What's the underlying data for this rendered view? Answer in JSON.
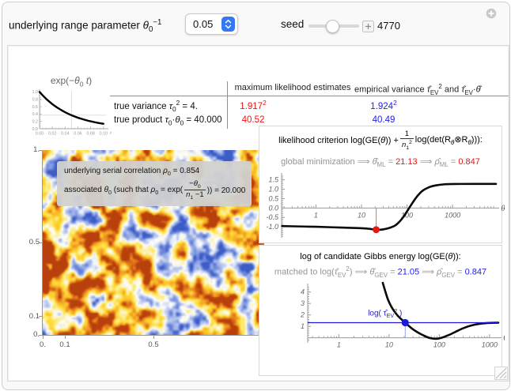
{
  "controls": {
    "range_label_segs": [
      {
        "t": "underlying range parameter "
      },
      {
        "t": "θ",
        "i": 1
      },
      {
        "t": "0",
        "sub": 1
      },
      {
        "t": "−1",
        "sup": 1
      }
    ],
    "range_value": "0.05",
    "seed_label": "seed",
    "seed_value": "4770"
  },
  "table": {
    "header_ml": "maximum likelihood estimates",
    "header_ev_segs": [
      {
        "t": "empirical variance "
      },
      {
        "t": "τ̂",
        "i": 1
      },
      {
        "t": "EV",
        "sub": 1
      },
      {
        "t": "2",
        "sup": 1
      },
      {
        "t": " and "
      },
      {
        "t": "τ̂",
        "i": 1
      },
      {
        "t": "EV",
        "sub": 1
      },
      {
        "t": "·"
      },
      {
        "t": "θ̂",
        "i": 1
      }
    ],
    "rows": [
      {
        "label_segs": [
          {
            "t": "true variance "
          },
          {
            "t": "τ",
            "i": 1
          },
          {
            "t": "0",
            "sub": 1
          },
          {
            "t": "2",
            "sup": 1
          },
          {
            "t": " = 4."
          }
        ],
        "ml_segs": [
          {
            "t": "1.917"
          },
          {
            "t": "2",
            "sup": 1
          }
        ],
        "ev_segs": [
          {
            "t": "1.924"
          },
          {
            "t": "2",
            "sup": 1
          }
        ]
      },
      {
        "label_segs": [
          {
            "t": "true product "
          },
          {
            "t": "τ",
            "i": 1
          },
          {
            "t": "0",
            "sub": 1
          },
          {
            "t": "·"
          },
          {
            "t": "θ",
            "i": 1
          },
          {
            "t": "0",
            "sub": 1
          },
          {
            "t": " = 40.000"
          }
        ],
        "ml_segs": [
          {
            "t": "40.52"
          }
        ],
        "ev_segs": [
          {
            "t": "40.49"
          }
        ]
      }
    ],
    "ml_color": "#ee1111",
    "ev_color": "#1d1dee"
  },
  "field_plot": {
    "x_ticks": [
      [
        0,
        "0."
      ],
      [
        0.1,
        "0.1"
      ],
      [
        0.5,
        "0.5"
      ],
      [
        1,
        "1."
      ]
    ],
    "y_ticks": [
      [
        0,
        "0."
      ],
      [
        0.1,
        "0.1"
      ],
      [
        0.5,
        "0.5"
      ],
      [
        1,
        "1."
      ]
    ],
    "overlay_line1_segs": [
      {
        "t": "underlying serial correlation "
      },
      {
        "t": "ρ",
        "i": 1
      },
      {
        "t": "0",
        "sub": 1
      },
      {
        "t": " = 0.854"
      }
    ],
    "overlay_line2_prefix_segs": [
      {
        "t": "associated "
      },
      {
        "t": "θ",
        "i": 1
      },
      {
        "t": "0",
        "sub": 1
      },
      {
        "t": " (such that "
      },
      {
        "t": "ρ",
        "i": 1
      },
      {
        "t": "0",
        "sub": 1
      },
      {
        "t": " = exp("
      }
    ],
    "overlay_frac_top_segs": [
      {
        "t": "−"
      },
      {
        "t": "θ",
        "i": 1
      },
      {
        "t": "0",
        "sub": 1
      }
    ],
    "overlay_frac_bottom_segs": [
      {
        "t": "n",
        "i": 1
      },
      {
        "t": "1",
        "sub": 1
      },
      {
        "t": " −1"
      }
    ],
    "overlay_line2_suffix_segs": [
      {
        "t": ")) = 20.000"
      }
    ],
    "colormap": [
      [
        0,
        "#3c5cc8"
      ],
      [
        0.15,
        "#7e97e0"
      ],
      [
        0.3,
        "#c9d4f2"
      ],
      [
        0.42,
        "#ffffff"
      ],
      [
        0.52,
        "#fbf3c4"
      ],
      [
        0.62,
        "#ffe860"
      ],
      [
        0.72,
        "#fdce2a"
      ],
      [
        0.82,
        "#f2a028"
      ],
      [
        0.92,
        "#da6a14"
      ],
      [
        1,
        "#b8400c"
      ]
    ]
  },
  "panel_ml": {
    "title_prefix_segs": [
      {
        "t": "likelihood criterion log(GE("
      },
      {
        "t": "θ",
        "i": 1
      },
      {
        "t": ")) + "
      }
    ],
    "frac_top_segs": [
      {
        "t": "1"
      }
    ],
    "frac_bottom_segs": [
      {
        "t": "n",
        "i": 1
      },
      {
        "t": "1",
        "sub": 1
      },
      {
        "t": "2",
        "sup": 1
      }
    ],
    "title_suffix_segs": [
      {
        "t": " log(det(R",
        "nosp": 1
      },
      {
        "t": "θ",
        "sub": 1,
        "i": 1
      },
      {
        "t": "⊗R"
      },
      {
        "t": "θ",
        "sub": 1,
        "i": 1
      },
      {
        "t": "))):"
      }
    ],
    "subtitle_segs": [
      {
        "t": "global minimization ⟹ "
      },
      {
        "t": "θ̂",
        "i": 1
      },
      {
        "t": "ML",
        "sub": 1
      },
      {
        "t": " =  "
      },
      {
        "t": "21.13",
        "c": "#ee1111"
      },
      {
        "t": " ⟹ "
      },
      {
        "t": "ρ̂",
        "i": 1
      },
      {
        "t": "ML",
        "sub": 1
      },
      {
        "t": " = "
      },
      {
        "t": "0.847",
        "c": "#ee1111"
      }
    ]
  },
  "panel_gev": {
    "title_segs": [
      {
        "t": "log of candidate Gibbs energy log(GE("
      },
      {
        "t": "θ",
        "i": 1
      },
      {
        "t": ")):"
      }
    ],
    "subtitle_segs": [
      {
        "t": "matched to log("
      },
      {
        "t": "τ̂",
        "i": 1
      },
      {
        "t": "EV",
        "sub": 1
      },
      {
        "t": "2",
        "sup": 1
      },
      {
        "t": ") ⟹ "
      },
      {
        "t": "θ̂",
        "i": 1
      },
      {
        "t": "GEV",
        "sub": 1
      },
      {
        "t": " =  "
      },
      {
        "t": "21.05",
        "c": "#1d1dee"
      },
      {
        "t": " ⟹ "
      },
      {
        "t": "ρ̂",
        "i": 1
      },
      {
        "t": "GEV",
        "sub": 1
      },
      {
        "t": " = "
      },
      {
        "t": "0.847",
        "c": "#1d1dee"
      }
    ]
  },
  "chart_data": [
    {
      "id": "exp",
      "type": "line",
      "title_segs": [
        {
          "t": "exp(−"
        },
        {
          "t": "θ",
          "i": 1
        },
        {
          "t": "0",
          "sub": 1
        },
        {
          "t": " "
        },
        {
          "t": "t",
          "i": 1
        },
        {
          "t": ")"
        }
      ],
      "xlabel": "t",
      "axis": "frame-lb",
      "x": {
        "min": 0,
        "max": 0.104,
        "minor": 0.005,
        "ticks": [
          [
            0,
            "0.00"
          ],
          [
            0.02,
            "0.02"
          ],
          [
            0.04,
            "0.04"
          ],
          [
            0.06,
            "0.06"
          ],
          [
            0.08,
            "0.08"
          ],
          [
            0.1,
            "0.10"
          ]
        ]
      },
      "y": {
        "min": 0,
        "max": 1.03,
        "minor": 0.05,
        "ticks": [
          [
            0,
            "0.0"
          ],
          [
            0.2,
            "0.2"
          ],
          [
            0.4,
            "0.4"
          ],
          [
            0.6,
            "0.6"
          ],
          [
            0.8,
            "0.8"
          ],
          [
            1,
            "1.0"
          ]
        ]
      },
      "grid_x": [
        0.05
      ],
      "grid_y": [
        0.368
      ],
      "series": [
        {
          "color": "#000000",
          "width": 2.4,
          "points": [
            [
              0,
              1
            ],
            [
              0.005,
              0.905
            ],
            [
              0.01,
              0.819
            ],
            [
              0.015,
              0.741
            ],
            [
              0.02,
              0.67
            ],
            [
              0.025,
              0.607
            ],
            [
              0.03,
              0.549
            ],
            [
              0.035,
              0.497
            ],
            [
              0.04,
              0.449
            ],
            [
              0.045,
              0.407
            ],
            [
              0.05,
              0.368
            ],
            [
              0.055,
              0.333
            ],
            [
              0.06,
              0.301
            ],
            [
              0.065,
              0.273
            ],
            [
              0.07,
              0.247
            ],
            [
              0.075,
              0.223
            ],
            [
              0.08,
              0.202
            ],
            [
              0.085,
              0.183
            ],
            [
              0.09,
              0.165
            ],
            [
              0.095,
              0.15
            ],
            [
              0.1,
              0.135
            ]
          ]
        }
      ]
    },
    {
      "id": "ml",
      "type": "line",
      "xscale": "log",
      "xlabel": "θ",
      "axis": "axes",
      "x": {
        "min": 0.176,
        "max": 9000,
        "ticks": [
          [
            1,
            "1"
          ],
          [
            10,
            "10"
          ],
          [
            100,
            "100"
          ],
          [
            1000,
            "1000"
          ]
        ]
      },
      "y": {
        "min": -1.5,
        "max": 1.78,
        "minor": 0.1,
        "ticks": [
          [
            -1,
            "-1.0"
          ],
          [
            -0.5,
            "-0.5"
          ],
          [
            0,
            "0.0"
          ],
          [
            0.5,
            "0.5"
          ],
          [
            1,
            "1.0"
          ],
          [
            1.5,
            "1.5"
          ]
        ]
      },
      "series": [
        {
          "color": "#0a0a0a",
          "width": 2.6,
          "points": [
            [
              0.18,
              -0.96
            ],
            [
              0.5,
              -0.985
            ],
            [
              1,
              -1.0
            ],
            [
              3,
              -1.035
            ],
            [
              10,
              -1.075
            ],
            [
              15,
              -1.11
            ],
            [
              21,
              -1.155
            ],
            [
              28,
              -1.15
            ],
            [
              40,
              -1.07
            ],
            [
              55,
              -0.93
            ],
            [
              70,
              -0.7
            ],
            [
              85,
              -0.45
            ],
            [
              100,
              -0.18
            ],
            [
              120,
              0.12
            ],
            [
              145,
              0.42
            ],
            [
              175,
              0.68
            ],
            [
              220,
              0.92
            ],
            [
              300,
              1.1
            ],
            [
              420,
              1.2
            ],
            [
              650,
              1.26
            ],
            [
              1100,
              1.28
            ],
            [
              9000,
              1.285
            ]
          ]
        }
      ],
      "extras": [
        {
          "type": "vline",
          "x": 21,
          "y1": -1.155,
          "y2": 0,
          "color": "#ff7070",
          "w": 1.1
        },
        {
          "type": "dot",
          "x": 21,
          "y": -1.155,
          "r": 4.4,
          "color": "#e8170f"
        }
      ],
      "estimate": {
        "theta_ml": "21.13",
        "rho_ml": "0.847"
      }
    },
    {
      "id": "gev",
      "type": "line",
      "xscale": "log",
      "xlabel": "θ",
      "axis": "axes",
      "x": {
        "min": 0.24,
        "max": 1500,
        "ticks": [
          [
            1,
            "1"
          ],
          [
            10,
            "10"
          ],
          [
            100,
            "100"
          ],
          [
            1000,
            "1000"
          ]
        ]
      },
      "y": {
        "min": -0.3,
        "max": 4.6,
        "minor": 0.2,
        "ticks": [
          [
            1,
            "1"
          ],
          [
            2,
            "2"
          ],
          [
            3,
            "3"
          ],
          [
            4,
            "4"
          ]
        ]
      },
      "series": [
        {
          "color": "#0a0a0a",
          "width": 2.6,
          "points": [
            [
              7.5,
              4.8
            ],
            [
              8.5,
              4.0
            ],
            [
              9.5,
              3.35
            ],
            [
              11,
              2.75
            ],
            [
              13,
              2.25
            ],
            [
              15,
              1.92
            ],
            [
              18,
              1.58
            ],
            [
              21,
              1.32
            ],
            [
              25,
              1.02
            ],
            [
              30,
              0.74
            ],
            [
              38,
              0.45
            ],
            [
              48,
              0.22
            ],
            [
              60,
              0.03
            ],
            [
              72,
              -0.06
            ],
            [
              85,
              -0.09
            ],
            [
              100,
              -0.05
            ],
            [
              125,
              0.08
            ],
            [
              160,
              0.27
            ],
            [
              210,
              0.52
            ],
            [
              280,
              0.78
            ],
            [
              380,
              1.0
            ],
            [
              520,
              1.16
            ],
            [
              700,
              1.25
            ],
            [
              1000,
              1.3
            ],
            [
              1500,
              1.32
            ]
          ]
        }
      ],
      "extras": [
        {
          "type": "hline",
          "y": 1.32,
          "color": "#1c1cd8",
          "w": 1.2
        },
        {
          "type": "vline",
          "x": 21,
          "y1": 0,
          "y2": 1.32,
          "color": "#9aa4ee",
          "w": 1
        },
        {
          "type": "dot",
          "x": 21,
          "y": 1.32,
          "r": 4.6,
          "color": "#1c1cd8"
        },
        {
          "type": "label",
          "x": 21,
          "y": 1.95,
          "color": "#2222cc",
          "segs": [
            {
              "t": "log( "
            },
            {
              "t": "τ̂"
            },
            {
              "t": "EV",
              "sub": 1
            },
            {
              "t": "2",
              "sup": 1
            },
            {
              "t": " )"
            }
          ]
        }
      ],
      "estimate": {
        "theta_gev": "21.05",
        "rho_gev": "0.847"
      }
    }
  ]
}
